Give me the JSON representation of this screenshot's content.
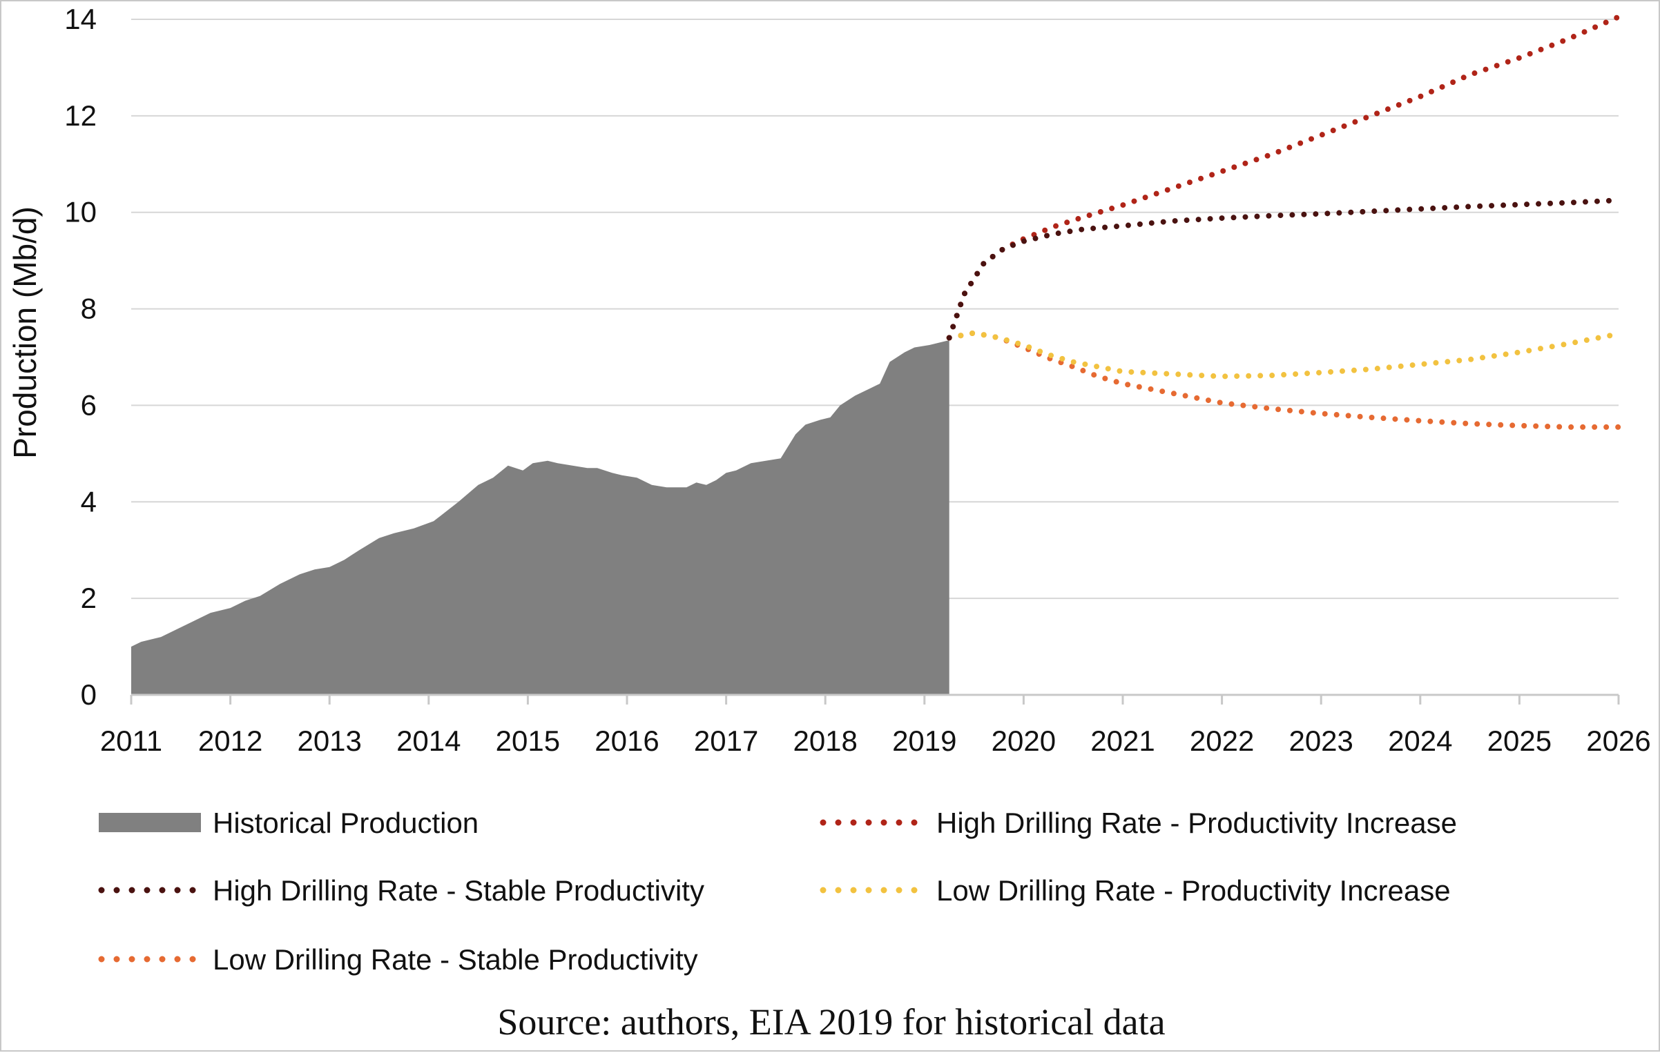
{
  "chart_data": {
    "type": "area",
    "ylabel": "Production (Mb/d)",
    "xlabel": "",
    "xlim": [
      2011,
      2026
    ],
    "ylim": [
      0,
      14
    ],
    "x_ticks": [
      "2011",
      "2012",
      "2013",
      "2014",
      "2015",
      "2016",
      "2017",
      "2018",
      "2019",
      "2020",
      "2021",
      "2022",
      "2023",
      "2024",
      "2025",
      "2026"
    ],
    "y_ticks": [
      "0",
      "2",
      "4",
      "6",
      "8",
      "10",
      "12",
      "14"
    ],
    "grid": "horizontal",
    "legend_position": "bottom",
    "historical": {
      "name": "Historical Production",
      "color": "#808080",
      "x": [
        2011.0,
        2011.1,
        2011.2,
        2011.3,
        2011.45,
        2011.6,
        2011.8,
        2012.0,
        2012.15,
        2012.3,
        2012.5,
        2012.7,
        2012.85,
        2013.0,
        2013.15,
        2013.3,
        2013.5,
        2013.65,
        2013.85,
        2014.05,
        2014.3,
        2014.5,
        2014.65,
        2014.8,
        2014.95,
        2015.05,
        2015.2,
        2015.3,
        2015.45,
        2015.6,
        2015.7,
        2015.85,
        2015.95,
        2016.1,
        2016.25,
        2016.4,
        2016.6,
        2016.7,
        2016.8,
        2016.9,
        2017.0,
        2017.1,
        2017.25,
        2017.4,
        2017.55,
        2017.7,
        2017.8,
        2017.95,
        2018.05,
        2018.15,
        2018.3,
        2018.45,
        2018.55,
        2018.65,
        2018.8,
        2018.9,
        2019.05,
        2019.15,
        2019.25
      ],
      "values": [
        1.0,
        1.1,
        1.15,
        1.2,
        1.35,
        1.5,
        1.7,
        1.8,
        1.95,
        2.05,
        2.3,
        2.5,
        2.6,
        2.65,
        2.8,
        3.0,
        3.25,
        3.35,
        3.45,
        3.6,
        4.0,
        4.35,
        4.5,
        4.75,
        4.65,
        4.8,
        4.85,
        4.8,
        4.75,
        4.7,
        4.7,
        4.6,
        4.55,
        4.5,
        4.35,
        4.3,
        4.3,
        4.4,
        4.35,
        4.45,
        4.6,
        4.65,
        4.8,
        4.85,
        4.9,
        5.4,
        5.6,
        5.7,
        5.75,
        6.0,
        6.2,
        6.35,
        6.45,
        6.9,
        7.1,
        7.2,
        7.25,
        7.3,
        7.35
      ]
    },
    "series": [
      {
        "name": "High Drilling Rate - Productivity Increase",
        "color": "#b02418",
        "x": [
          2019.25,
          2019.4,
          2019.6,
          2019.8,
          2020.0,
          2020.3,
          2020.6,
          2021.0,
          2021.5,
          2022.0,
          2022.5,
          2023.0,
          2023.5,
          2024.0,
          2024.5,
          2025.0,
          2025.5,
          2026.0
        ],
        "values": [
          7.4,
          8.3,
          8.95,
          9.25,
          9.45,
          9.7,
          9.9,
          10.15,
          10.5,
          10.85,
          11.2,
          11.6,
          12.0,
          12.4,
          12.85,
          13.2,
          13.6,
          14.05
        ]
      },
      {
        "name": "High Drilling Rate - Stable Productivity",
        "color": "#4a1210",
        "x": [
          2019.25,
          2019.4,
          2019.6,
          2019.8,
          2020.0,
          2020.3,
          2020.6,
          2021.0,
          2021.5,
          2022.0,
          2022.5,
          2023.0,
          2023.5,
          2024.0,
          2024.5,
          2025.0,
          2025.5,
          2026.0
        ],
        "values": [
          7.4,
          8.3,
          8.95,
          9.25,
          9.4,
          9.55,
          9.65,
          9.72,
          9.82,
          9.88,
          9.93,
          9.97,
          10.02,
          10.07,
          10.12,
          10.16,
          10.2,
          10.25
        ]
      },
      {
        "name": "Low Drilling Rate - Productivity Increase",
        "color": "#f2c240",
        "x": [
          2019.25,
          2019.5,
          2019.75,
          2020.0,
          2020.25,
          2020.5,
          2020.75,
          2021.0,
          2021.5,
          2022.0,
          2022.5,
          2023.0,
          2023.5,
          2024.0,
          2024.5,
          2025.0,
          2025.5,
          2026.0
        ],
        "values": [
          7.4,
          7.5,
          7.4,
          7.25,
          7.05,
          6.9,
          6.8,
          6.7,
          6.65,
          6.6,
          6.62,
          6.68,
          6.75,
          6.85,
          6.95,
          7.1,
          7.28,
          7.48
        ]
      },
      {
        "name": "Low Drilling Rate - Stable Productivity",
        "color": "#e66a32",
        "x": [
          2019.25,
          2019.5,
          2019.75,
          2020.0,
          2020.25,
          2020.5,
          2020.75,
          2021.0,
          2021.5,
          2022.0,
          2022.5,
          2023.0,
          2023.5,
          2024.0,
          2024.5,
          2025.0,
          2025.5,
          2026.0
        ],
        "values": [
          7.4,
          7.5,
          7.4,
          7.2,
          6.98,
          6.8,
          6.6,
          6.45,
          6.25,
          6.05,
          5.93,
          5.83,
          5.75,
          5.68,
          5.62,
          5.58,
          5.55,
          5.55
        ]
      }
    ]
  },
  "legend": [
    {
      "label": "Historical Production",
      "symbol": "area",
      "color": "#808080"
    },
    {
      "label": "High Drilling Rate - Productivity Increase",
      "symbol": "dots",
      "color": "#b02418"
    },
    {
      "label": "High Drilling Rate - Stable Productivity",
      "symbol": "dots",
      "color": "#4a1210"
    },
    {
      "label": "Low Drilling Rate - Productivity Increase",
      "symbol": "dots",
      "color": "#f2c240"
    },
    {
      "label": "Low Drilling Rate - Stable Productivity",
      "symbol": "dots",
      "color": "#e66a32"
    }
  ],
  "source_note": "Source: authors, EIA 2019 for historical data"
}
